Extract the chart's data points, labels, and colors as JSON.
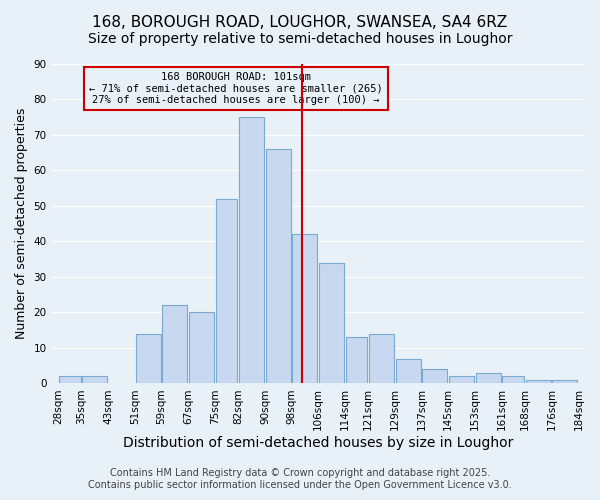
{
  "title": "168, BOROUGH ROAD, LOUGHOR, SWANSEA, SA4 6RZ",
  "subtitle": "Size of property relative to semi-detached houses in Loughor",
  "xlabel": "Distribution of semi-detached houses by size in Loughor",
  "ylabel": "Number of semi-detached properties",
  "bar_edges": [
    28,
    35,
    43,
    51,
    59,
    67,
    75,
    82,
    90,
    98,
    106,
    114,
    121,
    129,
    137,
    145,
    153,
    161,
    168,
    176,
    184
  ],
  "bar_heights": [
    2,
    2,
    0,
    14,
    22,
    20,
    52,
    75,
    66,
    42,
    34,
    13,
    14,
    7,
    4,
    2,
    3,
    2,
    1,
    1
  ],
  "bar_color": "#c8d8f0",
  "bar_edgecolor": "#7aaad0",
  "vline_x": 101,
  "vline_color": "#cc0000",
  "annotation_title": "168 BOROUGH ROAD: 101sqm",
  "annotation_line1": "← 71% of semi-detached houses are smaller (265)",
  "annotation_line2": "27% of semi-detached houses are larger (100) →",
  "annotation_box_edgecolor": "#cc0000",
  "tick_labels": [
    "28sqm",
    "35sqm",
    "43sqm",
    "51sqm",
    "59sqm",
    "67sqm",
    "75sqm",
    "82sqm",
    "90sqm",
    "98sqm",
    "106sqm",
    "114sqm",
    "121sqm",
    "129sqm",
    "137sqm",
    "145sqm",
    "153sqm",
    "161sqm",
    "168sqm",
    "176sqm",
    "184sqm"
  ],
  "ylim": [
    0,
    90
  ],
  "yticks": [
    0,
    10,
    20,
    30,
    40,
    50,
    60,
    70,
    80,
    90
  ],
  "bg_color": "#e8f0f8",
  "grid_color": "#ffffff",
  "footer_line1": "Contains HM Land Registry data © Crown copyright and database right 2025.",
  "footer_line2": "Contains public sector information licensed under the Open Government Licence v3.0.",
  "title_fontsize": 11,
  "subtitle_fontsize": 10,
  "xlabel_fontsize": 10,
  "ylabel_fontsize": 9,
  "tick_fontsize": 7.5,
  "footer_fontsize": 7
}
